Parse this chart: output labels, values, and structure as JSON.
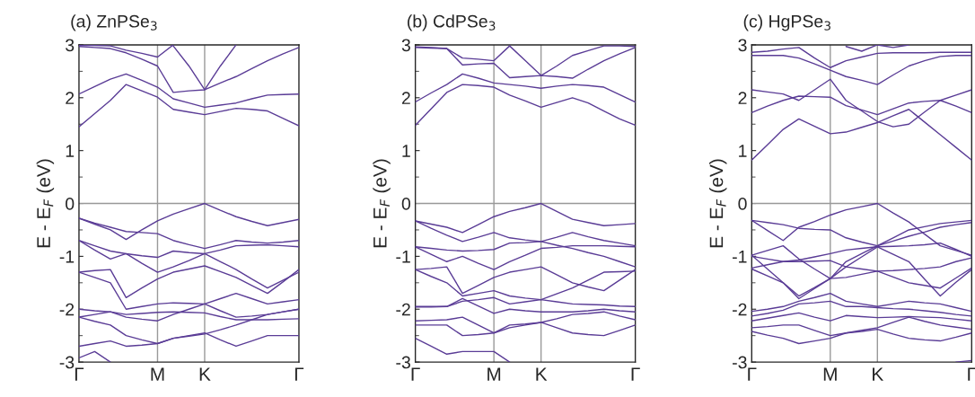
{
  "chart_data": [
    {
      "type": "line",
      "title": "(a) ZnPSe$_{3}$",
      "ylabel": "E - E$_{F}$ (eV)",
      "ylim": [
        -3,
        3
      ],
      "yticks": [
        -3,
        -2,
        -1,
        0,
        1,
        2,
        3
      ],
      "grid": false,
      "marker": "none",
      "line_style": "solid",
      "categories": [
        "Γ",
        null,
        null,
        null,
        null,
        "M",
        null,
        null,
        "K",
        null,
        null,
        null,
        null,
        null,
        "Γ"
      ],
      "ref_lines": [
        {
          "axis": "y",
          "value": 0,
          "color": "#999999"
        },
        {
          "axis": "x",
          "value": "M",
          "color": "#999999"
        },
        {
          "axis": "x",
          "value": "K",
          "color": "#999999"
        }
      ],
      "series": [
        {
          "color": "#5a3c96",
          "values": [
            1.45,
            1.7,
            1.95,
            2.25,
            2.13,
            2.01,
            1.78,
            1.73,
            1.68,
            1.74,
            1.8,
            1.78,
            1.75,
            1.61,
            1.47
          ]
        },
        {
          "color": "#5a3c96",
          "values": [
            2.07,
            2.21,
            2.35,
            2.45,
            2.33,
            2.2,
            1.98,
            1.9,
            1.82,
            1.86,
            1.9,
            1.98,
            2.05,
            2.06,
            2.07
          ]
        },
        {
          "color": "#5a3c96",
          "values": [
            2.97,
            2.95,
            2.93,
            2.85,
            2.73,
            2.6,
            2.1,
            2.13,
            2.15,
            2.28,
            2.4,
            2.55,
            2.7,
            2.83,
            2.95
          ]
        },
        {
          "color": "#5a3c96",
          "values": [
            2.99,
            2.99,
            2.98,
            2.9,
            2.84,
            2.77,
            3.0,
            null,
            null,
            null,
            null,
            null,
            null,
            null,
            null
          ]
        },
        {
          "color": "#5a3c96",
          "values": [
            null,
            null,
            null,
            null,
            null,
            null,
            2.98,
            2.6,
            2.15,
            2.6,
            3.0,
            null,
            null,
            null,
            null
          ]
        },
        {
          "color": "#5a3c96",
          "values": [
            -0.28,
            -0.39,
            -0.5,
            -0.68,
            -0.5,
            -0.33,
            -0.2,
            -0.1,
            0.0,
            -0.13,
            -0.25,
            -0.34,
            -0.42,
            -0.36,
            -0.3
          ]
        },
        {
          "color": "#5a3c96",
          "values": [
            -0.28,
            -0.37,
            -0.45,
            -0.53,
            -0.55,
            -0.57,
            -0.7,
            -0.78,
            -0.85,
            -0.78,
            -0.7,
            -0.73,
            -0.75,
            -0.73,
            -0.7
          ]
        },
        {
          "color": "#5a3c96",
          "values": [
            -0.7,
            -0.8,
            -0.9,
            -0.95,
            -0.99,
            -1.02,
            -0.9,
            -0.93,
            -0.95,
            -0.88,
            -0.8,
            -0.79,
            -0.78,
            -0.8,
            -0.82
          ]
        },
        {
          "color": "#5a3c96",
          "values": [
            -0.7,
            -0.88,
            -1.05,
            -0.95,
            -1.13,
            -1.3,
            -1.2,
            -1.08,
            -0.95,
            -1.1,
            -1.25,
            -1.43,
            -1.6,
            -1.45,
            -1.3
          ]
        },
        {
          "color": "#5a3c96",
          "values": [
            -1.3,
            -1.27,
            -1.25,
            -1.78,
            -1.6,
            -1.43,
            -1.3,
            -1.24,
            -1.18,
            -1.29,
            -1.4,
            -1.55,
            -1.7,
            -1.48,
            -1.25
          ]
        },
        {
          "color": "#5a3c96",
          "values": [
            -1.3,
            -1.4,
            -1.5,
            -2.0,
            -1.95,
            -1.9,
            -1.88,
            -1.89,
            -1.9,
            -1.8,
            -1.7,
            -1.8,
            -1.9,
            -1.86,
            -1.82
          ]
        },
        {
          "color": "#5a3c96",
          "values": [
            -2.0,
            -2.03,
            -2.05,
            -2.1,
            -2.08,
            -2.06,
            -2.05,
            -2.06,
            -2.07,
            -2.14,
            -2.2,
            -2.2,
            -2.2,
            -2.19,
            -2.18
          ]
        },
        {
          "color": "#5a3c96",
          "values": [
            -2.15,
            -2.1,
            -2.05,
            -2.15,
            -2.19,
            -2.22,
            -2.1,
            -2.0,
            -1.9,
            -2.03,
            -2.15,
            -2.13,
            -2.1,
            -2.05,
            -2.0
          ]
        },
        {
          "color": "#5a3c96",
          "values": [
            -2.15,
            -2.23,
            -2.3,
            -2.5,
            -2.58,
            -2.65,
            -2.55,
            -2.5,
            -2.45,
            -2.58,
            -2.7,
            -2.6,
            -2.5,
            -2.5,
            -2.5
          ]
        },
        {
          "color": "#5a3c96",
          "values": [
            -2.7,
            -2.65,
            -2.6,
            -2.7,
            -2.68,
            -2.65,
            -2.55,
            -2.51,
            -2.47,
            -2.39,
            -2.3,
            -2.2,
            -2.1,
            -2.05,
            -2.0
          ]
        },
        {
          "color": "#5a3c96",
          "values": [
            -2.92,
            -2.8,
            -3.0,
            null,
            null,
            null,
            null,
            null,
            null,
            null,
            null,
            null,
            null,
            null,
            null
          ]
        }
      ]
    },
    {
      "type": "line",
      "title": "(b) CdPSe$_{3}$",
      "ylabel": "E - E$_{F}$ (eV)",
      "ylim": [
        -3,
        3
      ],
      "yticks": [
        -3,
        -2,
        -1,
        0,
        1,
        2,
        3
      ],
      "grid": false,
      "marker": "none",
      "line_style": "solid",
      "categories": [
        "Γ",
        null,
        null,
        null,
        null,
        "M",
        null,
        null,
        "K",
        null,
        null,
        null,
        null,
        null,
        "Γ"
      ],
      "ref_lines": [
        {
          "axis": "y",
          "value": 0,
          "color": "#999999"
        },
        {
          "axis": "x",
          "value": "M",
          "color": "#999999"
        },
        {
          "axis": "x",
          "value": "K",
          "color": "#999999"
        }
      ],
      "series": [
        {
          "color": "#5a3c96",
          "values": [
            1.48,
            1.79,
            2.1,
            2.25,
            2.23,
            2.2,
            2.05,
            1.94,
            1.82,
            1.91,
            2.0,
            1.9,
            1.75,
            1.6,
            1.48
          ]
        },
        {
          "color": "#5a3c96",
          "values": [
            1.92,
            2.09,
            2.25,
            2.45,
            2.37,
            2.28,
            2.25,
            2.22,
            2.18,
            2.22,
            2.25,
            2.23,
            2.2,
            2.06,
            1.92
          ]
        },
        {
          "color": "#5a3c96",
          "values": [
            2.95,
            2.94,
            2.93,
            2.62,
            2.64,
            2.65,
            2.38,
            2.4,
            2.42,
            2.4,
            2.37,
            2.54,
            2.7,
            2.83,
            2.95
          ]
        },
        {
          "color": "#5a3c96",
          "values": [
            2.96,
            2.95,
            2.93,
            2.75,
            2.73,
            2.7,
            2.98,
            null,
            null,
            null,
            null,
            null,
            null,
            null,
            null
          ]
        },
        {
          "color": "#5a3c96",
          "values": [
            null,
            null,
            null,
            null,
            null,
            null,
            2.98,
            2.7,
            2.42,
            2.6,
            2.8,
            2.89,
            2.98,
            2.98,
            2.97
          ]
        },
        {
          "color": "#5a3c96",
          "values": [
            -0.33,
            -0.39,
            -0.45,
            -0.55,
            -0.4,
            -0.25,
            -0.15,
            -0.08,
            0.0,
            -0.15,
            -0.3,
            -0.36,
            -0.42,
            -0.4,
            -0.38
          ]
        },
        {
          "color": "#5a3c96",
          "values": [
            -0.33,
            -0.47,
            -0.6,
            -0.72,
            -0.64,
            -0.55,
            -0.65,
            -0.69,
            -0.72,
            -0.64,
            -0.55,
            -0.63,
            -0.7,
            -0.75,
            -0.8
          ]
        },
        {
          "color": "#5a3c96",
          "values": [
            -0.82,
            -0.85,
            -0.88,
            -0.9,
            -0.89,
            -0.87,
            -0.75,
            -0.74,
            -0.72,
            -0.79,
            -0.85,
            -0.93,
            -1.0,
            -1.1,
            -1.2
          ]
        },
        {
          "color": "#5a3c96",
          "values": [
            -0.82,
            -0.96,
            -1.1,
            -1.0,
            -1.13,
            -1.25,
            -1.1,
            -0.98,
            -0.85,
            -0.83,
            -0.8,
            -0.8,
            -0.8,
            -0.81,
            -0.82
          ]
        },
        {
          "color": "#5a3c96",
          "values": [
            -1.25,
            -1.23,
            -1.2,
            -1.7,
            -1.55,
            -1.4,
            -1.3,
            -1.25,
            -1.2,
            -1.35,
            -1.5,
            -1.58,
            -1.65,
            -1.45,
            -1.25
          ]
        },
        {
          "color": "#5a3c96",
          "values": [
            -1.25,
            -1.38,
            -1.5,
            -1.75,
            -1.7,
            -1.65,
            -1.75,
            -1.79,
            -1.82,
            -1.71,
            -1.6,
            -1.45,
            -1.3,
            -1.29,
            -1.28
          ]
        },
        {
          "color": "#5a3c96",
          "values": [
            -1.95,
            -1.95,
            -1.95,
            -1.85,
            -1.82,
            -1.78,
            -1.9,
            -1.86,
            -1.82,
            -1.86,
            -1.9,
            -1.91,
            -1.92,
            -1.94,
            -1.95
          ]
        },
        {
          "color": "#5a3c96",
          "values": [
            -1.96,
            -1.96,
            -1.95,
            -1.8,
            -1.94,
            -2.08,
            -2.0,
            -2.03,
            -2.05,
            -2.05,
            -2.05,
            -2.03,
            -2.0,
            -2.03,
            -2.05
          ]
        },
        {
          "color": "#5a3c96",
          "values": [
            -2.22,
            -2.21,
            -2.2,
            -2.15,
            -2.3,
            -2.45,
            -2.35,
            -2.3,
            -2.25,
            -2.18,
            -2.1,
            -2.08,
            -2.05,
            -2.13,
            -2.2
          ]
        },
        {
          "color": "#5a3c96",
          "values": [
            -2.3,
            -2.3,
            -2.3,
            -2.5,
            -2.48,
            -2.45,
            -2.3,
            -2.28,
            -2.25,
            -2.35,
            -2.45,
            -2.48,
            -2.5,
            -2.4,
            -2.3
          ]
        },
        {
          "color": "#5a3c96",
          "values": [
            -2.55,
            -2.7,
            -2.85,
            -2.8,
            -2.8,
            -2.8,
            -3.0,
            null,
            null,
            null,
            null,
            null,
            null,
            null,
            null
          ]
        }
      ]
    },
    {
      "type": "line",
      "title": "(c) HgPSe$_{3}$",
      "ylabel": "E - E$_{F}$ (eV)",
      "ylim": [
        -3,
        3
      ],
      "yticks": [
        -3,
        -2,
        -1,
        0,
        1,
        2,
        3
      ],
      "grid": false,
      "marker": "none",
      "line_style": "solid",
      "categories": [
        "Γ",
        null,
        null,
        null,
        null,
        "M",
        null,
        null,
        "K",
        null,
        null,
        null,
        null,
        null,
        "Γ"
      ],
      "ref_lines": [
        {
          "axis": "y",
          "value": 0,
          "color": "#999999"
        },
        {
          "axis": "x",
          "value": "M",
          "color": "#999999"
        },
        {
          "axis": "x",
          "value": "K",
          "color": "#999999"
        }
      ],
      "series": [
        {
          "color": "#5a3c96",
          "values": [
            0.82,
            1.11,
            1.4,
            1.6,
            1.46,
            1.32,
            1.35,
            1.44,
            1.53,
            1.66,
            1.78,
            1.54,
            1.3,
            1.06,
            0.82
          ]
        },
        {
          "color": "#5a3c96",
          "values": [
            1.72,
            1.84,
            1.95,
            2.03,
            2.02,
            2.01,
            1.85,
            1.77,
            1.68,
            1.79,
            1.9,
            1.93,
            1.95,
            1.84,
            1.72
          ]
        },
        {
          "color": "#5a3c96",
          "values": [
            2.15,
            2.11,
            2.07,
            1.95,
            2.15,
            2.35,
            1.95,
            1.75,
            1.55,
            1.45,
            1.5,
            1.73,
            1.95,
            2.05,
            2.15
          ]
        },
        {
          "color": "#5a3c96",
          "values": [
            2.8,
            2.8,
            2.8,
            2.75,
            2.64,
            2.52,
            2.4,
            2.33,
            2.25,
            2.43,
            2.6,
            2.7,
            2.78,
            2.8,
            2.8
          ]
        },
        {
          "color": "#5a3c96",
          "values": [
            2.86,
            2.88,
            2.92,
            2.95,
            2.75,
            2.57,
            2.7,
            2.77,
            2.84,
            2.85,
            2.85,
            2.85,
            2.86,
            2.86,
            2.86
          ]
        },
        {
          "color": "#5a3c96",
          "values": [
            null,
            null,
            null,
            null,
            null,
            null,
            2.97,
            2.88,
            3.0,
            2.95,
            3.0,
            null,
            null,
            null,
            null
          ]
        },
        {
          "color": "#5a3c96",
          "values": [
            -0.32,
            -0.51,
            -0.7,
            -0.45,
            -0.34,
            -0.22,
            -0.12,
            -0.06,
            0.0,
            -0.18,
            -0.35,
            -0.58,
            -0.8,
            -0.89,
            -0.98
          ]
        },
        {
          "color": "#5a3c96",
          "values": [
            -0.32,
            -0.36,
            -0.4,
            -0.47,
            -0.49,
            -0.5,
            -0.65,
            -0.73,
            -0.8,
            -0.65,
            -0.5,
            -0.44,
            -0.38,
            -0.35,
            -0.32
          ]
        },
        {
          "color": "#5a3c96",
          "values": [
            -0.98,
            -0.89,
            -0.8,
            -1.05,
            -1.24,
            -1.42,
            -1.1,
            -0.95,
            -0.8,
            -0.71,
            -0.62,
            -0.54,
            -0.45,
            -0.4,
            -0.36
          ]
        },
        {
          "color": "#5a3c96",
          "values": [
            -1.0,
            -1.05,
            -1.1,
            -1.07,
            -1.01,
            -0.95,
            -0.88,
            -0.85,
            -0.82,
            -0.81,
            -0.8,
            -0.78,
            -0.75,
            -0.87,
            -1.0
          ]
        },
        {
          "color": "#5a3c96",
          "values": [
            -1.22,
            -1.16,
            -1.1,
            -1.1,
            -1.09,
            -1.08,
            -1.2,
            -1.24,
            -1.28,
            -1.39,
            -1.5,
            -1.55,
            -1.6,
            -1.41,
            -1.22
          ]
        },
        {
          "color": "#5a3c96",
          "values": [
            -1.24,
            -1.37,
            -1.5,
            -1.8,
            -1.61,
            -1.42,
            -1.4,
            -1.34,
            -1.28,
            -1.27,
            -1.25,
            -1.23,
            -1.2,
            -1.1,
            -1.03
          ]
        },
        {
          "color": "#5a3c96",
          "values": [
            -0.98,
            -1.24,
            -1.5,
            -1.75,
            -1.59,
            -1.42,
            -1.2,
            -1.01,
            -0.82,
            -0.96,
            -1.1,
            -1.43,
            -1.75,
            -1.49,
            -1.25
          ]
        },
        {
          "color": "#5a3c96",
          "values": [
            -2.04,
            -2.0,
            -1.95,
            -1.85,
            -1.78,
            -1.7,
            -1.85,
            -1.9,
            -1.95,
            -1.9,
            -1.85,
            -1.88,
            -1.9,
            -1.97,
            -2.04
          ]
        },
        {
          "color": "#5a3c96",
          "values": [
            -2.13,
            -2.08,
            -2.02,
            -1.9,
            -1.88,
            -1.85,
            -1.95,
            -1.95,
            -1.97,
            -1.99,
            -2.0,
            -2.03,
            -2.06,
            -2.1,
            -2.13
          ]
        },
        {
          "color": "#5a3c96",
          "values": [
            -2.22,
            -2.17,
            -2.12,
            -2.07,
            -2.15,
            -2.22,
            -2.12,
            -2.14,
            -2.16,
            -2.15,
            -2.14,
            -2.15,
            -2.16,
            -2.19,
            -2.22
          ]
        },
        {
          "color": "#5a3c96",
          "values": [
            -2.35,
            -2.33,
            -2.3,
            -2.3,
            -2.4,
            -2.5,
            -2.45,
            -2.4,
            -2.35,
            -2.25,
            -2.15,
            -2.23,
            -2.3,
            -2.34,
            -2.38
          ]
        },
        {
          "color": "#5a3c96",
          "values": [
            -2.42,
            -2.49,
            -2.55,
            -2.65,
            -2.6,
            -2.55,
            -2.45,
            -2.42,
            -2.38,
            -2.47,
            -2.55,
            -2.58,
            -2.6,
            -2.53,
            -2.45
          ]
        },
        {
          "color": "#5a3c96",
          "values": [
            null,
            null,
            null,
            null,
            null,
            null,
            null,
            null,
            null,
            null,
            null,
            null,
            null,
            -3.0,
            -2.97
          ]
        }
      ]
    }
  ]
}
